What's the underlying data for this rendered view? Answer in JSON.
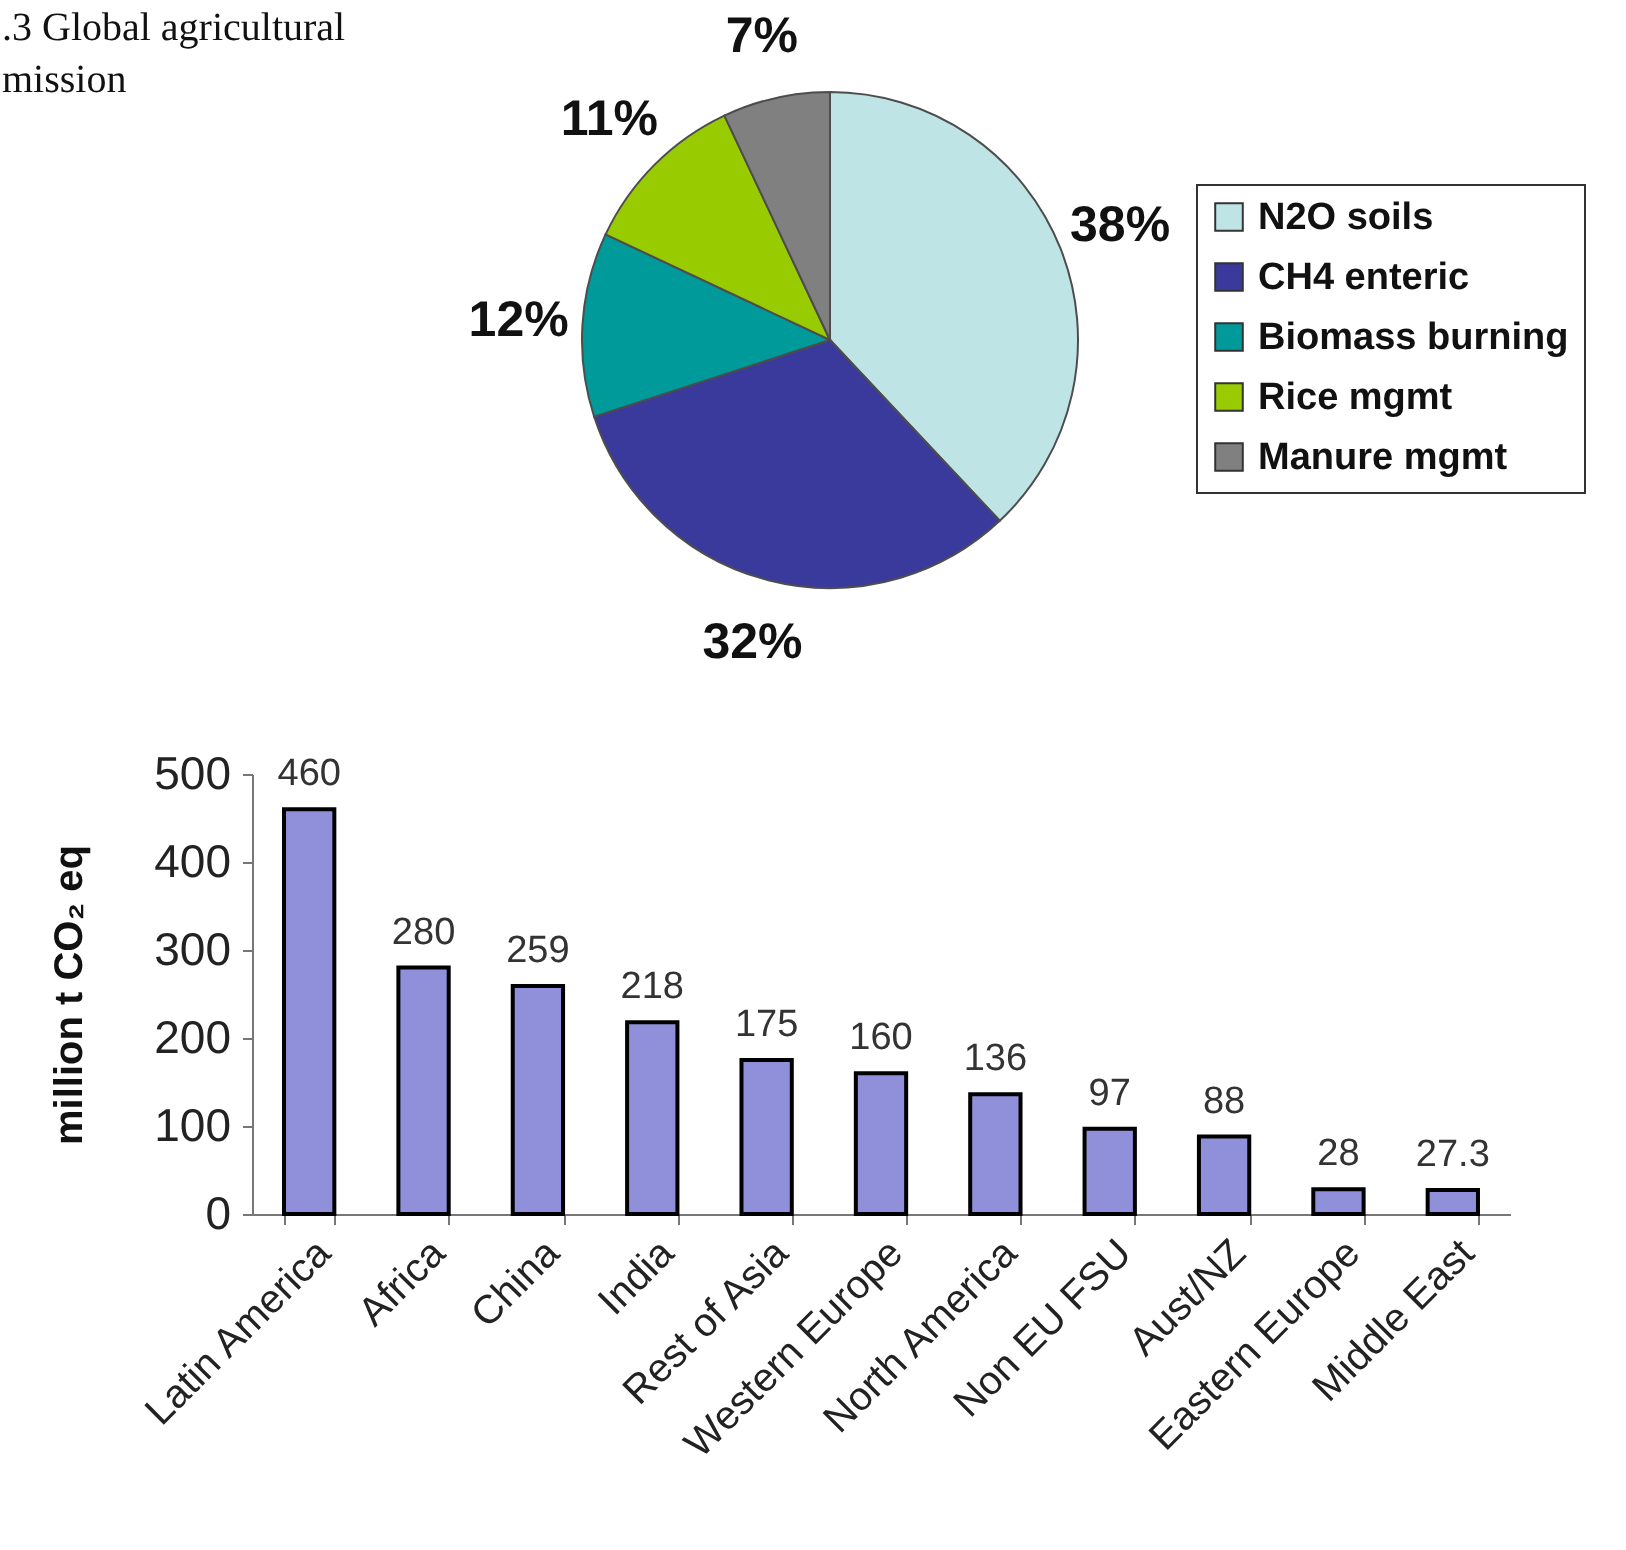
{
  "chart_data": [
    {
      "type": "pie",
      "annotations": [
        ".3 Global agricultural",
        "mission"
      ],
      "categories": [
        "N2O soils",
        "CH4 enteric",
        "Biomass burning",
        "Rice mgmt",
        "Manure mgmt"
      ],
      "values": [
        38,
        32,
        12,
        11,
        7
      ],
      "colors": [
        "#bfe4e6",
        "#3a3a9c",
        "#009a9a",
        "#99cc00",
        "#808080"
      ],
      "value_labels": [
        "38%",
        "32%",
        "12%",
        "11%",
        "7%"
      ],
      "legend": "right"
    },
    {
      "type": "bar",
      "ylabel": "million t CO₂ eq",
      "categories": [
        "Latin America",
        "Africa",
        "China",
        "India",
        "Rest of Asia",
        "Western Europe",
        "North America",
        "Non EU FSU",
        "Aust/NZ",
        "Eastern Europe",
        "Middle East"
      ],
      "values": [
        460,
        280,
        259,
        218,
        175,
        160,
        136,
        97,
        88,
        28,
        27.3
      ],
      "color": "#9090da",
      "ylim": [
        0,
        500
      ],
      "yticks": [
        0,
        100,
        200,
        300,
        400,
        500
      ],
      "data_labels": true
    }
  ]
}
